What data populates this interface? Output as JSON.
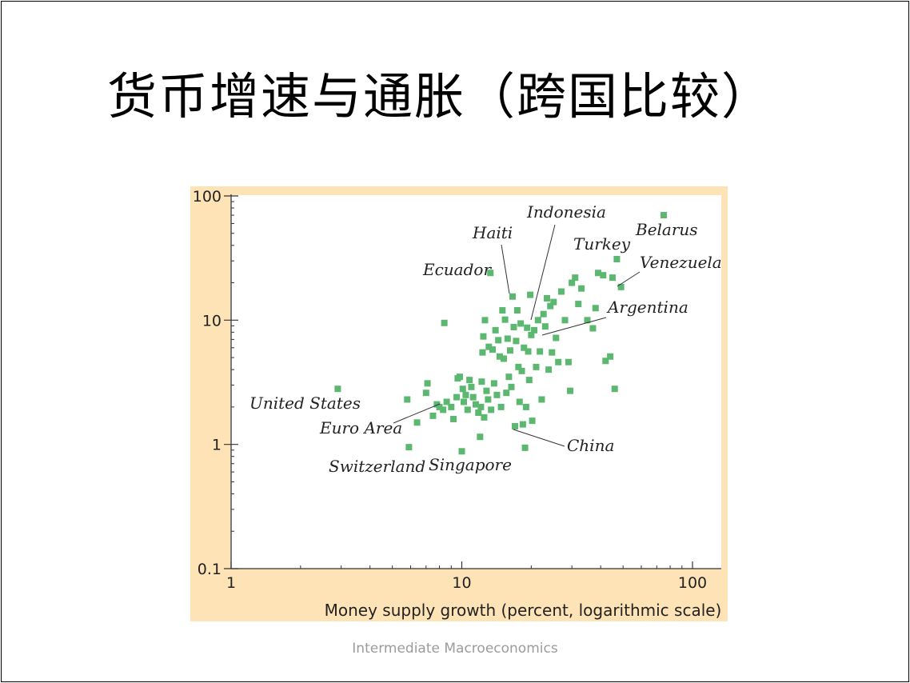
{
  "slide": {
    "title": "货币增速与通胀（跨国比较）",
    "footer": "Intermediate Macroeconomics"
  },
  "chart_data": {
    "type": "scatter",
    "xlabel": "Money supply growth (percent, logarithmic scale)",
    "ylabel": "",
    "xscale": "log",
    "yscale": "log",
    "xlim": [
      1,
      140
    ],
    "ylim": [
      0.1,
      100
    ],
    "x_ticks": [
      "1",
      "10",
      "100"
    ],
    "y_ticks": [
      "0.1",
      "1",
      "10",
      "100"
    ],
    "marker_color": "#5cb870",
    "panel_color": "#fde3b6",
    "points": [
      [
        2.9,
        2.8
      ],
      [
        5.8,
        2.3
      ],
      [
        5.9,
        0.95
      ],
      [
        6.4,
        1.5
      ],
      [
        7.0,
        2.6
      ],
      [
        7.1,
        3.1
      ],
      [
        7.5,
        1.7
      ],
      [
        7.8,
        2.1
      ],
      [
        8.0,
        2.0
      ],
      [
        8.3,
        1.9
      ],
      [
        8.4,
        9.5
      ],
      [
        8.6,
        2.2
      ],
      [
        9.0,
        2.0
      ],
      [
        9.2,
        1.6
      ],
      [
        9.5,
        2.4
      ],
      [
        9.6,
        3.4
      ],
      [
        9.8,
        3.5
      ],
      [
        10.0,
        0.88
      ],
      [
        10.1,
        2.8
      ],
      [
        10.2,
        2.2
      ],
      [
        10.4,
        2.5
      ],
      [
        10.6,
        1.9
      ],
      [
        10.8,
        3.3
      ],
      [
        11.0,
        2.9
      ],
      [
        11.2,
        2.4
      ],
      [
        11.5,
        2.1
      ],
      [
        11.8,
        1.8
      ],
      [
        12.0,
        1.15
      ],
      [
        12.1,
        2.0
      ],
      [
        12.2,
        3.2
      ],
      [
        12.3,
        5.5
      ],
      [
        12.4,
        7.4
      ],
      [
        12.5,
        1.65
      ],
      [
        12.6,
        10.0
      ],
      [
        12.8,
        2.7
      ],
      [
        13.0,
        2.3
      ],
      [
        13.1,
        6.1
      ],
      [
        13.3,
        24.0
      ],
      [
        13.4,
        1.9
      ],
      [
        13.6,
        5.8
      ],
      [
        13.8,
        3.1
      ],
      [
        14.0,
        8.3
      ],
      [
        14.2,
        2.5
      ],
      [
        14.4,
        6.9
      ],
      [
        14.6,
        5.1
      ],
      [
        14.8,
        2.0
      ],
      [
        15.0,
        12.0
      ],
      [
        15.2,
        4.9
      ],
      [
        15.4,
        10.1
      ],
      [
        15.6,
        2.6
      ],
      [
        15.8,
        7.1
      ],
      [
        16.0,
        3.5
      ],
      [
        16.2,
        5.7
      ],
      [
        16.4,
        2.9
      ],
      [
        16.6,
        15.5
      ],
      [
        16.8,
        8.8
      ],
      [
        17.0,
        1.4
      ],
      [
        17.2,
        6.8
      ],
      [
        17.4,
        12.0
      ],
      [
        17.6,
        4.2
      ],
      [
        17.8,
        2.2
      ],
      [
        18.0,
        9.4
      ],
      [
        18.2,
        3.9
      ],
      [
        18.4,
        1.45
      ],
      [
        18.6,
        6.0
      ],
      [
        18.8,
        0.94
      ],
      [
        19.0,
        2.0
      ],
      [
        19.2,
        8.7
      ],
      [
        19.4,
        5.6
      ],
      [
        19.6,
        3.3
      ],
      [
        19.8,
        16.0
      ],
      [
        20.0,
        7.6
      ],
      [
        20.2,
        1.55
      ],
      [
        20.6,
        8.3
      ],
      [
        21.0,
        4.2
      ],
      [
        21.4,
        10.0
      ],
      [
        21.8,
        5.6
      ],
      [
        22.2,
        2.3
      ],
      [
        22.6,
        11.2
      ],
      [
        23.0,
        8.9
      ],
      [
        23.4,
        15.0
      ],
      [
        23.8,
        4.0
      ],
      [
        24.2,
        13.0
      ],
      [
        24.6,
        5.5
      ],
      [
        25.0,
        14.0
      ],
      [
        25.6,
        7.2
      ],
      [
        26.2,
        4.6
      ],
      [
        27.0,
        17.0
      ],
      [
        28.0,
        10.0
      ],
      [
        29.0,
        4.6
      ],
      [
        29.5,
        2.7
      ],
      [
        30.0,
        20.0
      ],
      [
        31.0,
        22.0
      ],
      [
        32.0,
        13.5
      ],
      [
        33.0,
        18.0
      ],
      [
        35.0,
        10.0
      ],
      [
        37.0,
        8.6
      ],
      [
        38.0,
        12.5
      ],
      [
        39.0,
        24.0
      ],
      [
        41.0,
        23.0
      ],
      [
        42.0,
        4.7
      ],
      [
        44.0,
        5.1
      ],
      [
        45.0,
        22.0
      ],
      [
        46.0,
        2.8
      ],
      [
        47.0,
        31.0
      ],
      [
        49.0,
        18.5
      ],
      [
        75.0,
        70.0
      ]
    ],
    "annotations": [
      {
        "text": "Belarus",
        "x": 75,
        "y": 70
      },
      {
        "text": "Turkey",
        "x": 47,
        "y": 31
      },
      {
        "text": "Venezuela",
        "x": 49,
        "y": 18.5
      },
      {
        "text": "Argentina",
        "x": 22.6,
        "y": 8.5
      },
      {
        "text": "Indonesia",
        "x": 20.2,
        "y": 10.0
      },
      {
        "text": "Haiti",
        "x": 16.6,
        "y": 15.5
      },
      {
        "text": "Ecuador",
        "x": 13.3,
        "y": 24.0
      },
      {
        "text": "United States",
        "x": 2.9,
        "y": 2.8
      },
      {
        "text": "Euro Area",
        "x": 8.0,
        "y": 2.0
      },
      {
        "text": "Switzerland",
        "x": 5.9,
        "y": 0.95
      },
      {
        "text": "Singapore",
        "x": 10.0,
        "y": 0.88
      },
      {
        "text": "China",
        "x": 17.0,
        "y": 1.4
      }
    ]
  }
}
